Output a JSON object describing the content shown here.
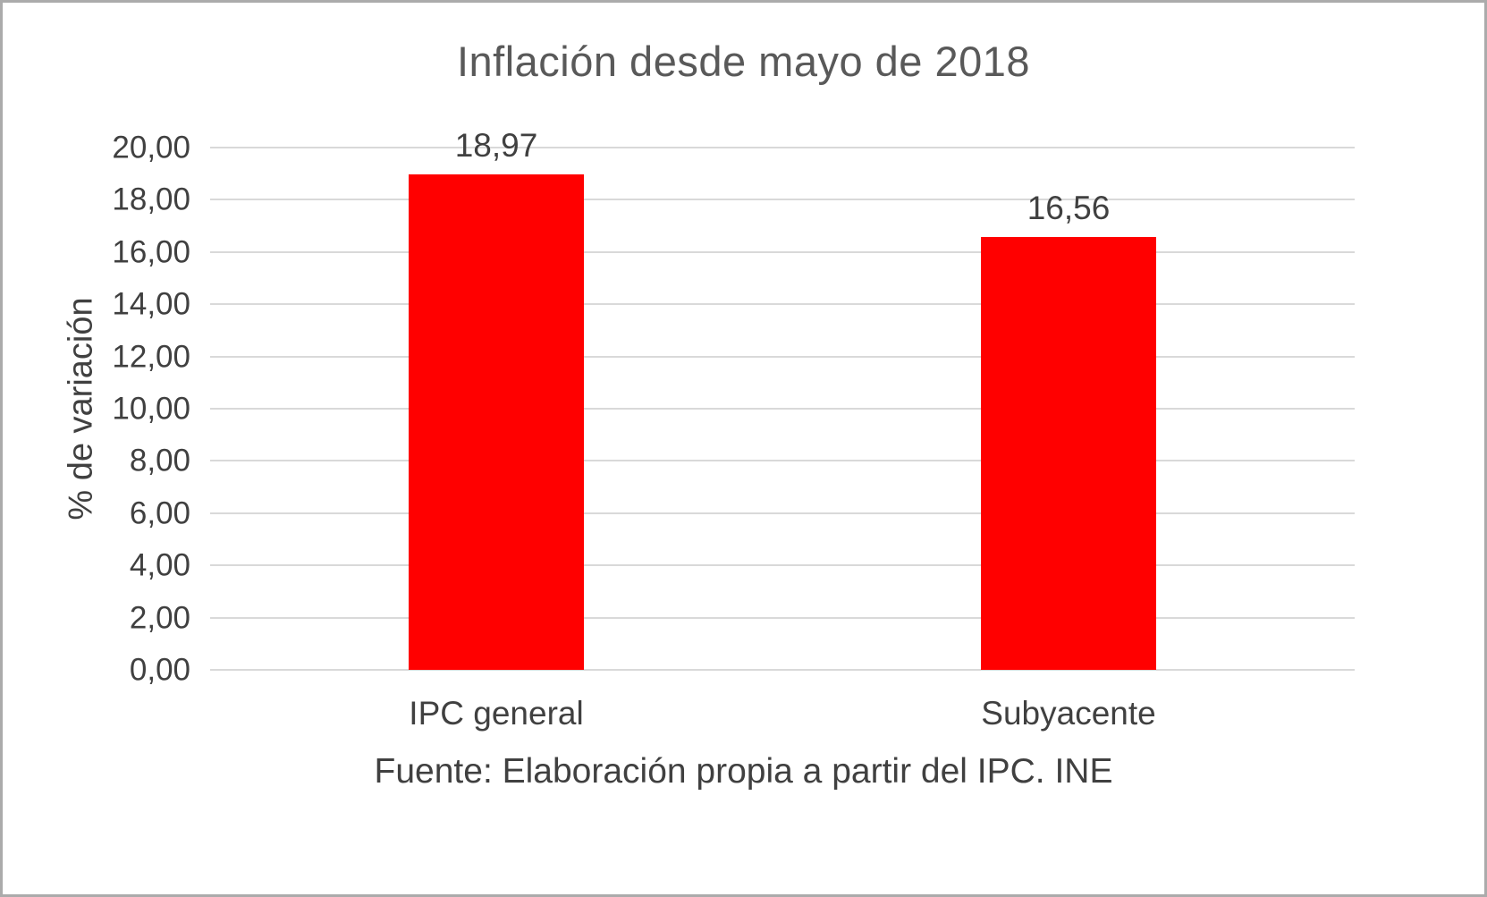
{
  "chart_data": {
    "type": "bar",
    "title": "Inflación desde mayo de 2018",
    "categories": [
      "IPC general",
      "Subyacente"
    ],
    "values": [
      18.97,
      16.56
    ],
    "value_labels": [
      "18,97",
      "16,56"
    ],
    "xlabel": "",
    "ylabel": "% de variación",
    "ylim": [
      0,
      20
    ],
    "ytick_step": 2,
    "ytick_labels": [
      "0,00",
      "2,00",
      "4,00",
      "6,00",
      "8,00",
      "10,00",
      "12,00",
      "14,00",
      "16,00",
      "18,00",
      "20,00"
    ],
    "source": "Fuente: Elaboración propia a partir del IPC. INE",
    "bar_color": "#ff0000",
    "grid": true,
    "gridline_color": "#d9d9d9",
    "title_color": "#595959",
    "text_color": "#404040",
    "legend": false
  }
}
